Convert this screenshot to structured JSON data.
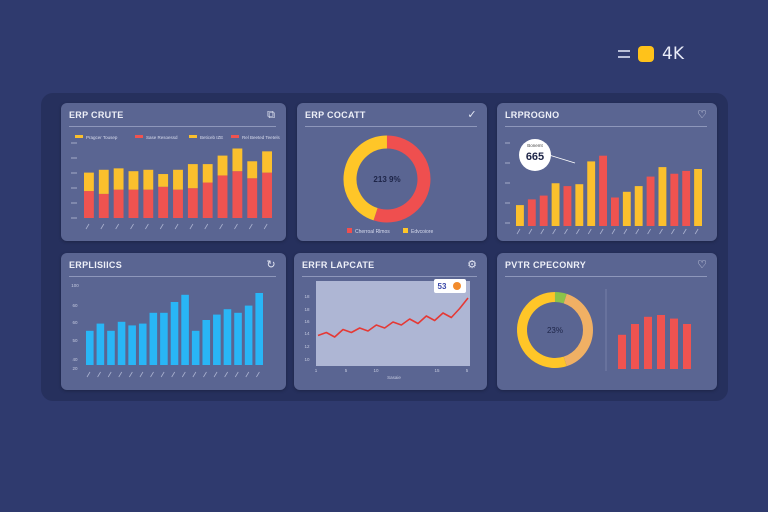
{
  "header": {
    "resolution_label": "4K",
    "accent": "#ffc21a"
  },
  "colors": {
    "red": "#ef5350",
    "yellow": "#fbc02d",
    "cyan": "#29b6f6",
    "line": "#e53935",
    "donut_yellow": "#ffc628",
    "donut_red": "#ef4f4f",
    "donut_green": "#8bc34a",
    "donut_tan": "#f0b064"
  },
  "cards": {
    "c1": {
      "title": "ERP CRUTE",
      "icon": "square-icon"
    },
    "c2": {
      "title": "ERP COCATT",
      "icon": "check-icon"
    },
    "c3": {
      "title": "LRPROGNO",
      "icon": "heart-icon"
    },
    "c4": {
      "title": "ERPLISIICS",
      "icon": "refresh-icon"
    },
    "c5": {
      "title": "ERFR LAPCATE",
      "icon": "gear-icon"
    },
    "c6": {
      "title": "PVTR CPECONRY",
      "icon": "heart-icon"
    }
  },
  "chart_data": [
    {
      "type": "bar",
      "title": "ERP CRUTE",
      "legend": [
        "Pragcer Tousep",
        "Sase Resoessd",
        "Beticeb IZE",
        "Rel Beeted Teetels"
      ],
      "series": [
        {
          "name": "red",
          "values": [
            19,
            17,
            20,
            20,
            20,
            22,
            20,
            21,
            25,
            30,
            33,
            28,
            32
          ]
        },
        {
          "name": "yellow",
          "values": [
            13,
            17,
            15,
            13,
            14,
            9,
            14,
            17,
            13,
            14,
            16,
            12,
            15
          ]
        }
      ],
      "ylim": [
        0,
        55
      ]
    },
    {
      "type": "pie",
      "title": "ERP COCATT",
      "center_label": "213 9%",
      "legend": [
        "Cherroal Rlmos",
        "Edvcoiore"
      ],
      "values": [
        55,
        45
      ]
    },
    {
      "type": "bar",
      "title": "LRPROGNO",
      "annotation": {
        "label": "Bonemt",
        "value": "665"
      },
      "series": [
        {
          "name": "bars",
          "values": [
            22,
            28,
            32,
            45,
            42,
            44,
            68,
            74,
            30,
            36,
            42,
            52,
            62,
            55,
            58,
            60
          ]
        }
      ],
      "ylim": [
        0,
        100
      ]
    },
    {
      "type": "bar",
      "title": "ERPLISIICS",
      "y_ticks": [
        "100",
        "60",
        "60",
        "50",
        "40",
        "20"
      ],
      "values": [
        38,
        46,
        38,
        48,
        44,
        46,
        58,
        58,
        70,
        78,
        38,
        50,
        56,
        62,
        58,
        66,
        80
      ],
      "ylim": [
        0,
        100
      ]
    },
    {
      "type": "line",
      "title": "ERFR LAPCATE",
      "x_ticks": [
        "1",
        "5",
        "10",
        "15",
        "5"
      ],
      "xlabel": "Sasaie",
      "y_ticks": [
        "18",
        "18",
        "16",
        "14",
        "12",
        "10"
      ],
      "badge": "53",
      "values": [
        30,
        34,
        28,
        38,
        34,
        40,
        36,
        44,
        40,
        48,
        44,
        52,
        46,
        56,
        50,
        60,
        54,
        66,
        80
      ],
      "ylim": [
        0,
        100
      ]
    },
    {
      "type": "pie",
      "title": "PVTR CPECONRY",
      "center_label": "23%",
      "values": [
        5,
        40,
        55
      ],
      "bars": [
        38,
        50,
        58,
        60,
        56,
        50
      ]
    }
  ]
}
